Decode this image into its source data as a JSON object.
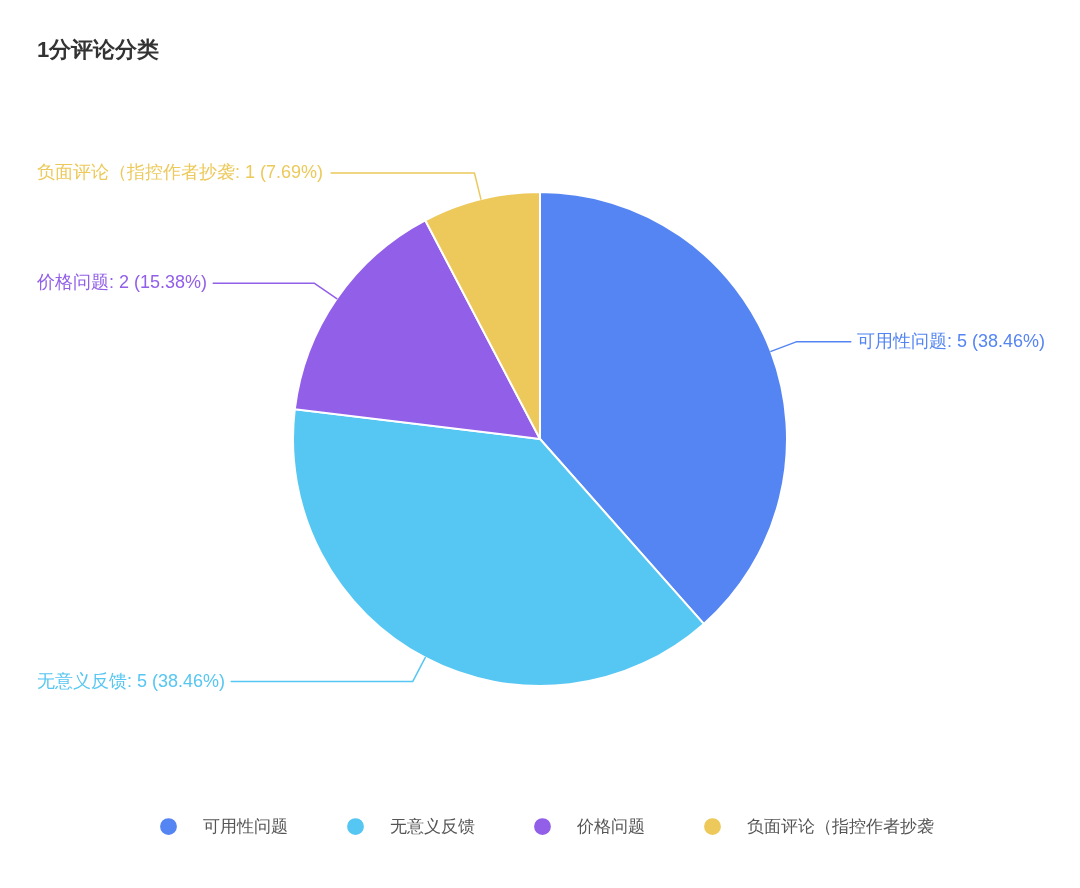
{
  "chart_data": {
    "type": "pie",
    "title": "1分评论分类",
    "categories": [
      "可用性问题",
      "无意义反馈",
      "价格问题",
      "负面评论（指控作者抄袭"
    ],
    "values": [
      5,
      5,
      2,
      1
    ],
    "colors": [
      "#5585f2",
      "#56c6f2",
      "#925fe8",
      "#ecc95a"
    ],
    "value_labels": [
      "可用性问题: 5 (38.46%)",
      "无意义反馈: 5 (38.46%)",
      "价格问题: 2 (15.38%)",
      "负面评论（指控作者抄袭: 1 (7.69%)"
    ],
    "legend": "bottom"
  }
}
